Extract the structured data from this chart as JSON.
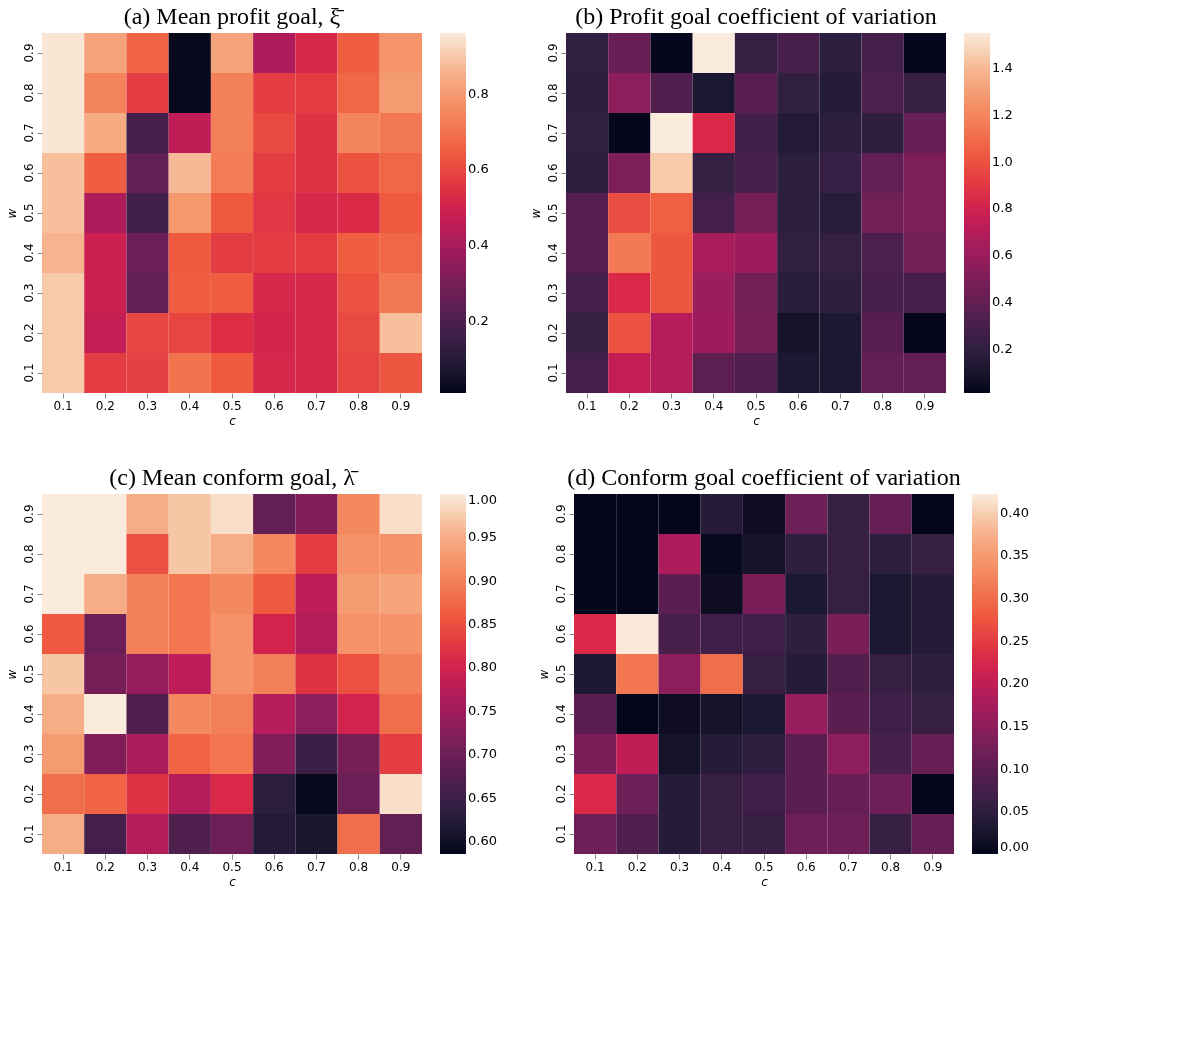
{
  "chart_data": [
    {
      "type": "heatmap",
      "title": "(a) Mean profit goal, ξ̄",
      "xlabel": "c",
      "ylabel": "w",
      "categories": [
        "0.1",
        "0.2",
        "0.3",
        "0.4",
        "0.5",
        "0.6",
        "0.7",
        "0.8",
        "0.9"
      ],
      "y_categories": [
        "0.9",
        "0.8",
        "0.7",
        "0.6",
        "0.5",
        "0.4",
        "0.3",
        "0.2",
        "0.1"
      ],
      "cells": [
        [
          0.95,
          0.82,
          0.66,
          0.02,
          0.82,
          0.42,
          0.52,
          0.65,
          0.78
        ],
        [
          0.95,
          0.74,
          0.57,
          0.02,
          0.73,
          0.57,
          0.57,
          0.67,
          0.8
        ],
        [
          0.95,
          0.84,
          0.18,
          0.46,
          0.73,
          0.6,
          0.55,
          0.74,
          0.71
        ],
        [
          0.88,
          0.65,
          0.25,
          0.87,
          0.72,
          0.57,
          0.55,
          0.62,
          0.67
        ],
        [
          0.88,
          0.42,
          0.17,
          0.79,
          0.64,
          0.56,
          0.52,
          0.53,
          0.64
        ],
        [
          0.86,
          0.49,
          0.27,
          0.64,
          0.57,
          0.57,
          0.57,
          0.65,
          0.67
        ],
        [
          0.9,
          0.49,
          0.25,
          0.65,
          0.65,
          0.52,
          0.52,
          0.62,
          0.71
        ],
        [
          0.9,
          0.47,
          0.59,
          0.59,
          0.54,
          0.51,
          0.52,
          0.6,
          0.88
        ],
        [
          0.9,
          0.57,
          0.58,
          0.7,
          0.64,
          0.52,
          0.52,
          0.59,
          0.63
        ]
      ],
      "clim": [
        0.01,
        0.96
      ],
      "cticks": [
        0.2,
        0.4,
        0.6,
        0.8
      ],
      "grid": false
    },
    {
      "type": "heatmap",
      "title": "(b) Profit goal coefficient of variation",
      "xlabel": "c",
      "ylabel": "w",
      "categories": [
        "0.1",
        "0.2",
        "0.3",
        "0.4",
        "0.5",
        "0.6",
        "0.7",
        "0.8",
        "0.9"
      ],
      "y_categories": [
        "0.9",
        "0.8",
        "0.7",
        "0.6",
        "0.5",
        "0.4",
        "0.3",
        "0.2",
        "0.1"
      ],
      "cells": [
        [
          0.2,
          0.42,
          0.02,
          1.55,
          0.22,
          0.3,
          0.18,
          0.28,
          0.02
        ],
        [
          0.18,
          0.55,
          0.33,
          0.12,
          0.36,
          0.2,
          0.15,
          0.32,
          0.22
        ],
        [
          0.2,
          0.02,
          1.55,
          0.85,
          0.27,
          0.14,
          0.18,
          0.19,
          0.42
        ],
        [
          0.18,
          0.5,
          1.45,
          0.22,
          0.3,
          0.18,
          0.23,
          0.4,
          0.5
        ],
        [
          0.35,
          0.98,
          1.05,
          0.28,
          0.47,
          0.18,
          0.16,
          0.45,
          0.5
        ],
        [
          0.35,
          1.15,
          1.02,
          0.65,
          0.62,
          0.2,
          0.22,
          0.32,
          0.45
        ],
        [
          0.28,
          0.85,
          1.02,
          0.6,
          0.45,
          0.17,
          0.19,
          0.3,
          0.28
        ],
        [
          0.22,
          1.0,
          0.7,
          0.62,
          0.48,
          0.08,
          0.12,
          0.35,
          0.02
        ],
        [
          0.28,
          0.75,
          0.7,
          0.38,
          0.33,
          0.12,
          0.12,
          0.4,
          0.4
        ]
      ],
      "clim": [
        0.01,
        1.55
      ],
      "cticks": [
        0.2,
        0.4,
        0.6,
        0.8,
        {
          "value": 1.0,
          "label": "1.0"
        },
        1.2,
        1.4
      ],
      "grid": false
    },
    {
      "type": "heatmap",
      "title": "(c) Mean conform goal, λ̄",
      "xlabel": "c",
      "ylabel": "w",
      "categories": [
        "0.1",
        "0.2",
        "0.3",
        "0.4",
        "0.5",
        "0.6",
        "0.7",
        "0.8",
        "0.9"
      ],
      "y_categories": [
        "0.9",
        "0.8",
        "0.7",
        "0.6",
        "0.5",
        "0.4",
        "0.3",
        "0.2",
        "0.1"
      ],
      "cells": [
        [
          1.0,
          1.0,
          0.95,
          0.97,
          0.99,
          0.69,
          0.72,
          0.91,
          0.99
        ],
        [
          1.0,
          1.0,
          0.85,
          0.97,
          0.95,
          0.91,
          0.83,
          0.92,
          0.92
        ],
        [
          1.0,
          0.95,
          0.9,
          0.89,
          0.91,
          0.86,
          0.78,
          0.93,
          0.94
        ],
        [
          0.86,
          0.7,
          0.9,
          0.89,
          0.92,
          0.8,
          0.77,
          0.92,
          0.92
        ],
        [
          0.97,
          0.71,
          0.74,
          0.78,
          0.92,
          0.9,
          0.82,
          0.85,
          0.9
        ],
        [
          0.95,
          1.0,
          0.67,
          0.91,
          0.9,
          0.77,
          0.73,
          0.8,
          0.88
        ],
        [
          0.93,
          0.72,
          0.76,
          0.87,
          0.89,
          0.72,
          0.65,
          0.71,
          0.83
        ],
        [
          0.88,
          0.87,
          0.82,
          0.77,
          0.81,
          0.63,
          0.59,
          0.7,
          0.99
        ],
        [
          0.95,
          0.66,
          0.77,
          0.67,
          0.7,
          0.62,
          0.61,
          0.88,
          0.69
        ]
      ],
      "clim": [
        0.585,
        1.0
      ],
      "cticks": [
        {
          "value": 0.6,
          "label": "0.60"
        },
        {
          "value": 0.65,
          "label": "0.65"
        },
        {
          "value": 0.7,
          "label": "0.70"
        },
        {
          "value": 0.75,
          "label": "0.75"
        },
        {
          "value": 0.8,
          "label": "0.80"
        },
        {
          "value": 0.85,
          "label": "0.85"
        },
        {
          "value": 0.9,
          "label": "0.90"
        },
        {
          "value": 0.95,
          "label": "0.95"
        },
        {
          "value": 1.0,
          "label": "1.00"
        }
      ],
      "grid": false
    },
    {
      "type": "heatmap",
      "title": "(d) Conform goal coefficient of variation",
      "xlabel": "c",
      "ylabel": "w",
      "categories": [
        "0.1",
        "0.2",
        "0.3",
        "0.4",
        "0.5",
        "0.6",
        "0.7",
        "0.8",
        "0.9"
      ],
      "y_categories": [
        "0.9",
        "0.8",
        "0.7",
        "0.6",
        "0.5",
        "0.4",
        "0.3",
        "0.2",
        "0.1"
      ],
      "cells": [
        [
          0.0,
          0.0,
          0.0,
          0.04,
          0.01,
          0.12,
          0.06,
          0.11,
          0.0
        ],
        [
          0.0,
          0.0,
          0.18,
          0.005,
          0.02,
          0.05,
          0.06,
          0.05,
          0.06
        ],
        [
          0.0,
          0.0,
          0.1,
          0.01,
          0.13,
          0.03,
          0.06,
          0.03,
          0.04
        ],
        [
          0.23,
          0.42,
          0.08,
          0.07,
          0.07,
          0.05,
          0.13,
          0.03,
          0.04
        ],
        [
          0.03,
          0.31,
          0.15,
          0.3,
          0.06,
          0.04,
          0.09,
          0.06,
          0.05
        ],
        [
          0.1,
          0.0,
          0.01,
          0.02,
          0.03,
          0.16,
          0.1,
          0.07,
          0.06
        ],
        [
          0.13,
          0.2,
          0.02,
          0.04,
          0.05,
          0.1,
          0.15,
          0.08,
          0.11
        ],
        [
          0.23,
          0.12,
          0.04,
          0.06,
          0.07,
          0.1,
          0.11,
          0.12,
          0.0
        ],
        [
          0.12,
          0.09,
          0.04,
          0.06,
          0.06,
          0.12,
          0.12,
          0.06,
          0.11
        ]
      ],
      "clim": [
        0.0,
        0.422
      ],
      "cticks": [
        {
          "value": 0.0,
          "label": "0.00"
        },
        {
          "value": 0.05,
          "label": "0.05"
        },
        {
          "value": 0.1,
          "label": "0.10"
        },
        {
          "value": 0.15,
          "label": "0.15"
        },
        {
          "value": 0.2,
          "label": "0.20"
        },
        {
          "value": 0.25,
          "label": "0.25"
        },
        {
          "value": 0.3,
          "label": "0.30"
        },
        {
          "value": 0.35,
          "label": "0.35"
        },
        {
          "value": 0.4,
          "label": "0.40"
        }
      ],
      "grid": false
    }
  ]
}
